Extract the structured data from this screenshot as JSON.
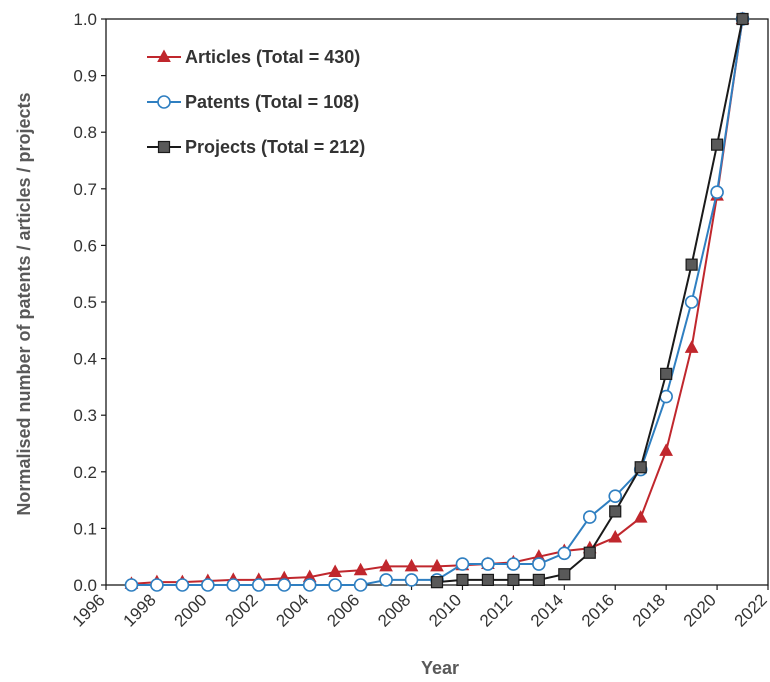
{
  "chart_data": {
    "type": "line",
    "title": "",
    "xlabel": "Year",
    "ylabel": "Normalised number of patents / articles / projects",
    "xlim": [
      1996,
      2022
    ],
    "ylim": [
      0.0,
      1.0
    ],
    "x_ticks": [
      "1996",
      "1998",
      "2000",
      "2002",
      "2004",
      "2006",
      "2008",
      "2010",
      "2012",
      "2014",
      "2016",
      "2018",
      "2020",
      "2022"
    ],
    "y_ticks": [
      "0.0",
      "0.1",
      "0.2",
      "0.3",
      "0.4",
      "0.5",
      "0.6",
      "0.7",
      "0.8",
      "0.9",
      "1.0"
    ],
    "grid": false,
    "legend_position": "top-left",
    "series": [
      {
        "name": "Articles (Total = 430)",
        "color": "#c0272d",
        "marker": "triangle",
        "x": [
          1997,
          1998,
          1999,
          2000,
          2001,
          2002,
          2003,
          2004,
          2005,
          2006,
          2007,
          2008,
          2009,
          2010,
          2011,
          2012,
          2013,
          2014,
          2015,
          2016,
          2017,
          2018,
          2019,
          2020,
          2021
        ],
        "y": [
          0.002,
          0.005,
          0.005,
          0.007,
          0.009,
          0.009,
          0.012,
          0.014,
          0.023,
          0.026,
          0.033,
          0.033,
          0.033,
          0.035,
          0.037,
          0.04,
          0.05,
          0.06,
          0.065,
          0.084,
          0.119,
          0.237,
          0.419,
          0.688,
          1.0
        ]
      },
      {
        "name": "Patents (Total = 108)",
        "color": "#2f7fc1",
        "marker": "circle",
        "x": [
          1997,
          1998,
          1999,
          2000,
          2001,
          2002,
          2003,
          2004,
          2005,
          2006,
          2007,
          2008,
          2009,
          2010,
          2011,
          2012,
          2013,
          2014,
          2015,
          2016,
          2017,
          2018,
          2019,
          2020,
          2021
        ],
        "y": [
          0.0,
          0.0,
          0.0,
          0.0,
          0.0,
          0.0,
          0.0,
          0.0,
          0.0,
          0.0,
          0.009,
          0.009,
          0.009,
          0.037,
          0.037,
          0.037,
          0.037,
          0.056,
          0.12,
          0.157,
          0.204,
          0.333,
          0.5,
          0.694,
          1.0
        ]
      },
      {
        "name": "Projects (Total = 212)",
        "color": "#1a1a1a",
        "marker": "square",
        "x": [
          2009,
          2010,
          2011,
          2012,
          2013,
          2014,
          2015,
          2016,
          2017,
          2018,
          2019,
          2020,
          2021
        ],
        "y": [
          0.005,
          0.009,
          0.009,
          0.009,
          0.009,
          0.019,
          0.057,
          0.13,
          0.208,
          0.373,
          0.566,
          0.778,
          1.0
        ]
      }
    ]
  }
}
